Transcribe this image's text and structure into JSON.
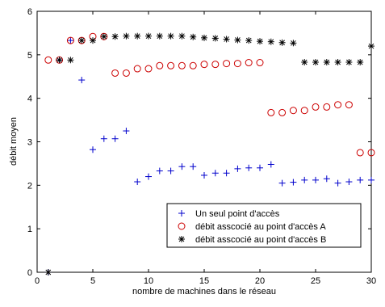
{
  "chart_data": {
    "type": "scatter",
    "title": "",
    "xlabel": "nombre de machines dans le réseau",
    "ylabel": "débit moyen",
    "xlim": [
      0,
      30
    ],
    "ylim": [
      0,
      6
    ],
    "xticks": [
      0,
      5,
      10,
      15,
      20,
      25,
      30
    ],
    "yticks": [
      0,
      1,
      2,
      3,
      4,
      5,
      6
    ],
    "grid": false,
    "legend_position": "lower-right",
    "series": [
      {
        "name": "Un seul point d'accès",
        "marker": "plus",
        "color": "#0000cc",
        "x": [
          1,
          2,
          3,
          4,
          5,
          6,
          7,
          8,
          9,
          10,
          11,
          12,
          13,
          14,
          15,
          16,
          17,
          18,
          19,
          20,
          21,
          22,
          23,
          24,
          25,
          26,
          27,
          28,
          29,
          30
        ],
        "y": [
          0,
          4.88,
          5.33,
          4.42,
          2.82,
          3.07,
          3.07,
          3.25,
          2.08,
          2.2,
          2.33,
          2.33,
          2.43,
          2.43,
          2.23,
          2.28,
          2.28,
          2.38,
          2.4,
          2.4,
          2.48,
          2.05,
          2.07,
          2.12,
          2.12,
          2.15,
          2.05,
          2.08,
          2.12,
          2.12
        ]
      },
      {
        "name": "débit asscocié au point d'accès A",
        "marker": "circle",
        "color": "#cc0000",
        "x": [
          1,
          2,
          3,
          4,
          5,
          6,
          7,
          8,
          9,
          10,
          11,
          12,
          13,
          14,
          15,
          16,
          17,
          18,
          19,
          20,
          21,
          22,
          23,
          24,
          25,
          26,
          27,
          28,
          29,
          30
        ],
        "y": [
          4.88,
          4.88,
          5.33,
          5.33,
          5.42,
          5.42,
          4.58,
          4.58,
          4.68,
          4.68,
          4.75,
          4.75,
          4.75,
          4.75,
          4.78,
          4.78,
          4.8,
          4.8,
          4.82,
          4.82,
          3.67,
          3.67,
          3.72,
          3.72,
          3.8,
          3.8,
          3.85,
          3.85,
          2.75,
          2.75
        ]
      },
      {
        "name": "débit asscocié au point d'accès B",
        "marker": "star",
        "color": "#000000",
        "x": [
          1,
          2,
          3,
          4,
          5,
          6,
          7,
          8,
          9,
          10,
          11,
          12,
          13,
          14,
          15,
          16,
          17,
          18,
          19,
          20,
          21,
          22,
          23,
          24,
          25,
          26,
          27,
          28,
          29,
          30
        ],
        "y": [
          0,
          4.88,
          4.88,
          5.33,
          5.33,
          5.42,
          5.42,
          5.43,
          5.43,
          5.43,
          5.43,
          5.43,
          5.43,
          5.41,
          5.39,
          5.38,
          5.36,
          5.34,
          5.33,
          5.31,
          5.3,
          5.28,
          5.27,
          4.83,
          4.83,
          4.83,
          4.83,
          4.83,
          4.83,
          5.2
        ]
      }
    ]
  }
}
